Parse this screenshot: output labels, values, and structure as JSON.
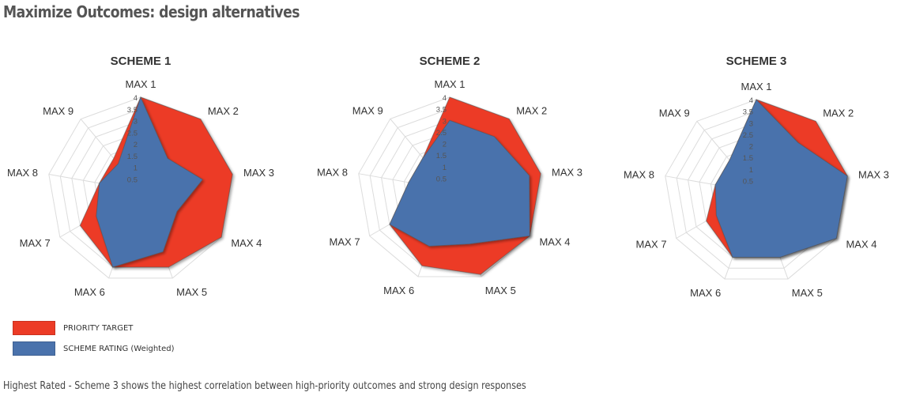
{
  "page": {
    "title": "Maximize Outcomes: design alternatives",
    "caption": "Highest Rated - Scheme 3 shows the highest correlation between high-priority outcomes and strong design responses"
  },
  "colors": {
    "priority": "#ec3b26",
    "rating": "#4a72ac",
    "grid": "#dcdcdc"
  },
  "legend": [
    {
      "label": "PRIORITY TARGET",
      "color": "#ec3b26"
    },
    {
      "label": "SCHEME RATING (Weighted)",
      "color": "#4a72ac"
    }
  ],
  "chart_data": [
    {
      "type": "radar",
      "title": "SCHEME 1",
      "categories": [
        "MAX 1",
        "MAX 2",
        "MAX 3",
        "MAX 4",
        "MAX 5",
        "MAX 6",
        "MAX 7",
        "MAX 8",
        "MAX 9"
      ],
      "scale": {
        "min": 0,
        "max": 4,
        "ticks": [
          "0.5",
          "1",
          "1.5",
          "2",
          "2.5",
          "3",
          "3.5",
          "4"
        ]
      },
      "series": [
        {
          "name": "PRIORITY TARGET",
          "values": [
            4,
            4,
            4,
            4,
            3.5,
            3.5,
            3,
            1.8,
            1.8
          ]
        },
        {
          "name": "SCHEME RATING (Weighted)",
          "values": [
            4,
            1.8,
            2.7,
            1.8,
            2.8,
            3.5,
            2.2,
            1.8,
            1.5
          ]
        }
      ]
    },
    {
      "type": "radar",
      "title": "SCHEME 2",
      "categories": [
        "MAX 1",
        "MAX 2",
        "MAX 3",
        "MAX 4",
        "MAX 5",
        "MAX 6",
        "MAX 7",
        "MAX 8",
        "MAX 9"
      ],
      "scale": {
        "min": 0,
        "max": 4,
        "ticks": [
          "0.5",
          "1",
          "1.5",
          "2",
          "2.5",
          "3",
          "3.5",
          "4"
        ]
      },
      "series": [
        {
          "name": "PRIORITY TARGET",
          "values": [
            4,
            4,
            4,
            4,
            3.9,
            3.5,
            3,
            1.8,
            1.8
          ]
        },
        {
          "name": "SCHEME RATING (Weighted)",
          "values": [
            3,
            3,
            3.5,
            4,
            2.5,
            2.6,
            3,
            1.8,
            1.8
          ]
        }
      ]
    },
    {
      "type": "radar",
      "title": "SCHEME 3",
      "categories": [
        "MAX 1",
        "MAX 2",
        "MAX 3",
        "MAX 4",
        "MAX 5",
        "MAX 6",
        "MAX 7",
        "MAX 8",
        "MAX 9"
      ],
      "scale": {
        "min": 0,
        "max": 4,
        "ticks": [
          "0.5",
          "1",
          "1.5",
          "2",
          "2.5",
          "3",
          "3.5",
          "4"
        ]
      },
      "series": [
        {
          "name": "PRIORITY TARGET",
          "values": [
            4,
            4,
            4,
            4,
            3,
            3,
            2.5,
            1.8,
            1.8
          ]
        },
        {
          "name": "SCHEME RATING (Weighted)",
          "values": [
            4,
            2.8,
            4,
            4,
            3,
            3,
            2,
            1.8,
            1.8
          ]
        }
      ]
    }
  ]
}
